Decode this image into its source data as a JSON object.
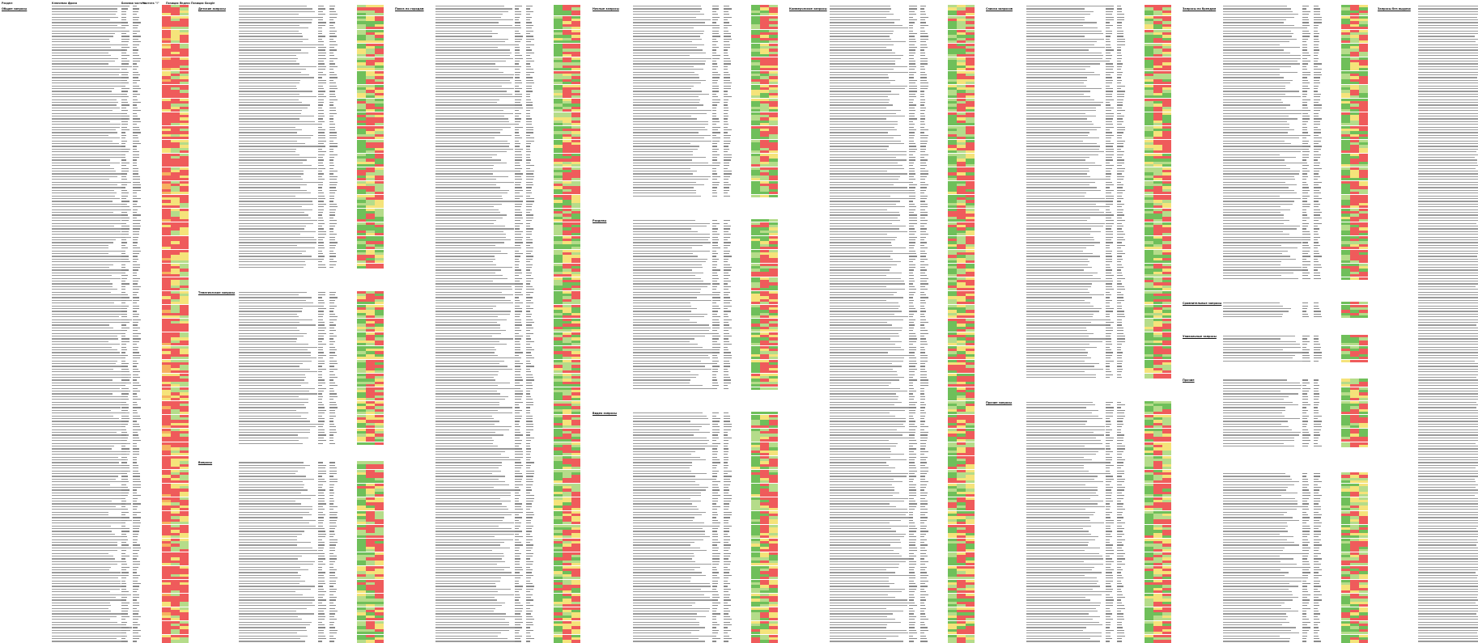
{
  "sheet": {
    "header": {
      "col_section": "Раздел",
      "col_phrase": "Ключевая фраза",
      "col_freq": "Базовая частота",
      "col_exact": "Частота \"!\"",
      "col_pos_yandex": "Позиция Яндекс",
      "col_pos_google": "Позиция Google"
    },
    "colors": {
      "green": "#6fbf5a",
      "light_green": "#b5dc8a",
      "yellow": "#f5e37a",
      "orange": "#f6b15f",
      "red": "#ef5b5b"
    },
    "sections": [
      {
        "title": "Общие запросы",
        "phrases": [
          "Элемент таблицы"
        ]
      },
      {
        "title": "Детские запросы",
        "phrases": [
          "Элемент таблицы"
        ]
      },
      {
        "title": "Тематические запросы",
        "phrases": [
          "Элемент таблицы"
        ]
      },
      {
        "title": "Вопросы",
        "phrases": [
          "Элемент таблицы"
        ]
      },
      {
        "title": "Поиск по городам",
        "phrases": [
          "Элемент таблицы"
        ]
      },
      {
        "title": "Ночные запросы",
        "phrases": [
          "Элемент таблицы"
        ]
      },
      {
        "title": "Разделы",
        "phrases": [
          "Элемент таблицы"
        ]
      },
      {
        "title": "Видео запросы",
        "phrases": [
          "Элемент таблицы"
        ]
      },
      {
        "title": "Коммерческие запросы",
        "phrases": [
          "Элемент таблицы"
        ]
      },
      {
        "title": "Списки запросов",
        "phrases": [
          "Элемент таблицы"
        ]
      },
      {
        "title": "Прочие запросы",
        "phrases": [
          "Элемент таблицы"
        ]
      },
      {
        "title": "Запросы по брендам",
        "phrases": [
          "Элемент таблицы"
        ]
      },
      {
        "title": "Сравнительные запросы",
        "phrases": [
          "Элемент таблицы"
        ]
      },
      {
        "title": "Уникальные запросы",
        "phrases": [
          "Элемент таблицы"
        ]
      },
      {
        "title": "Прочие",
        "phrases": [
          "Элемент таблицы"
        ]
      },
      {
        "title": "Запросы без выдачи",
        "phrases": [
          "Элемент таблицы"
        ]
      }
    ]
  }
}
